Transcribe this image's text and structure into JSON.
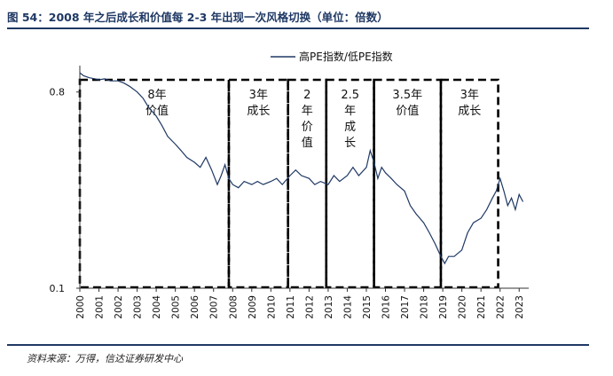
{
  "figure": {
    "title": "图 54：2008 年之后成长和价值每 2-3 年出现一次风格切换（单位：倍数）",
    "source": "资料来源：万得，信达证券研发中心"
  },
  "chart_data": {
    "type": "line",
    "title": "",
    "xlabel": "",
    "ylabel": "",
    "y_scale": "log",
    "ylim": [
      0.1,
      1.0
    ],
    "y_ticks": [
      0.1,
      0.8
    ],
    "y_tick_labels": [
      "0.1",
      "0.8"
    ],
    "x_ticks": [
      2000,
      2001,
      2002,
      2003,
      2004,
      2005,
      2006,
      2007,
      2008,
      2009,
      2010,
      2011,
      2012,
      2013,
      2014,
      2015,
      2016,
      2017,
      2018,
      2019,
      2020,
      2021,
      2022,
      2023
    ],
    "xlim": [
      2000,
      2023.5
    ],
    "legend": {
      "position": "top-center",
      "label": "高PE指数/低PE指数"
    },
    "series": [
      {
        "name": "高PE指数/低PE指数",
        "color": "#1f3864",
        "x": [
          2000.0,
          2000.2,
          2000.5,
          2000.8,
          2001.0,
          2001.3,
          2001.6,
          2002.0,
          2002.3,
          2002.6,
          2003.0,
          2003.3,
          2003.6,
          2004.0,
          2004.3,
          2004.6,
          2005.0,
          2005.3,
          2005.6,
          2006.0,
          2006.3,
          2006.6,
          2006.9,
          2007.2,
          2007.4,
          2007.6,
          2007.8,
          2008.0,
          2008.3,
          2008.6,
          2009.0,
          2009.3,
          2009.6,
          2010.0,
          2010.3,
          2010.6,
          2011.0,
          2011.3,
          2011.6,
          2012.0,
          2012.3,
          2012.6,
          2013.0,
          2013.3,
          2013.6,
          2014.0,
          2014.3,
          2014.6,
          2015.0,
          2015.2,
          2015.4,
          2015.6,
          2015.8,
          2016.0,
          2016.3,
          2016.6,
          2017.0,
          2017.3,
          2017.6,
          2018.0,
          2018.3,
          2018.6,
          2018.9,
          2019.1,
          2019.3,
          2019.6,
          2020.0,
          2020.3,
          2020.6,
          2021.0,
          2021.3,
          2021.6,
          2021.8,
          2022.0,
          2022.2,
          2022.4,
          2022.6,
          2022.8,
          2023.0,
          2023.2
        ],
        "values": [
          0.98,
          0.95,
          0.93,
          0.92,
          0.91,
          0.92,
          0.9,
          0.9,
          0.88,
          0.85,
          0.8,
          0.75,
          0.68,
          0.62,
          0.56,
          0.5,
          0.46,
          0.43,
          0.4,
          0.38,
          0.36,
          0.4,
          0.35,
          0.3,
          0.33,
          0.37,
          0.32,
          0.3,
          0.29,
          0.31,
          0.3,
          0.31,
          0.3,
          0.31,
          0.32,
          0.3,
          0.33,
          0.35,
          0.33,
          0.32,
          0.3,
          0.31,
          0.3,
          0.33,
          0.31,
          0.33,
          0.36,
          0.33,
          0.36,
          0.43,
          0.38,
          0.32,
          0.36,
          0.34,
          0.32,
          0.3,
          0.28,
          0.24,
          0.22,
          0.2,
          0.18,
          0.16,
          0.14,
          0.13,
          0.14,
          0.14,
          0.15,
          0.18,
          0.2,
          0.21,
          0.23,
          0.26,
          0.28,
          0.32,
          0.28,
          0.24,
          0.26,
          0.23,
          0.27,
          0.25
        ]
      }
    ],
    "annotations": [
      {
        "x0": 2000.0,
        "x1": 2007.8,
        "lines": [
          "8年",
          "价值"
        ]
      },
      {
        "x0": 2007.8,
        "x1": 2010.9,
        "lines": [
          "3年",
          "成长"
        ]
      },
      {
        "x0": 2010.9,
        "x1": 2012.9,
        "lines": [
          "2",
          "年",
          "价",
          "值"
        ]
      },
      {
        "x0": 2012.9,
        "x1": 2015.4,
        "lines": [
          "2.5",
          "年",
          "成",
          "长"
        ]
      },
      {
        "x0": 2015.4,
        "x1": 2018.9,
        "lines": [
          "3.5年",
          "价值"
        ]
      },
      {
        "x0": 2018.9,
        "x1": 2021.9,
        "lines": [
          "3年",
          "成长"
        ]
      }
    ]
  }
}
